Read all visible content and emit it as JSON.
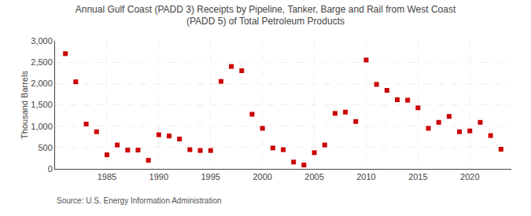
{
  "chart_data": {
    "type": "scatter",
    "title": "Annual Gulf Coast (PADD 3) Receipts by Pipeline, Tanker, Barge and Rail from West Coast\n(PADD 5) of Total Petroleum Products",
    "ylabel": "Thousand Barrels",
    "annotations": [
      "Source: U.S. Energy Information Administration"
    ],
    "x": [
      1981,
      1982,
      1983,
      1984,
      1985,
      1986,
      1987,
      1988,
      1989,
      1990,
      1991,
      1992,
      1993,
      1994,
      1995,
      1996,
      1997,
      1998,
      1999,
      2000,
      2001,
      2002,
      2003,
      2004,
      2005,
      2006,
      2007,
      2008,
      2009,
      2010,
      2011,
      2012,
      2013,
      2014,
      2015,
      2016,
      2017,
      2018,
      2019,
      2020,
      2021,
      2022,
      2023
    ],
    "values": [
      2700,
      2040,
      1050,
      870,
      330,
      560,
      440,
      440,
      200,
      800,
      770,
      700,
      450,
      430,
      430,
      2050,
      2400,
      2300,
      1280,
      950,
      490,
      450,
      160,
      90,
      380,
      560,
      1300,
      1330,
      1110,
      2550,
      1980,
      1840,
      1620,
      1610,
      1430,
      950,
      1090,
      1230,
      870,
      890,
      1090,
      780,
      460
    ],
    "color": "#cc0000",
    "marker": "square",
    "xlim": [
      1980,
      2024
    ],
    "xticks": [
      1985,
      1990,
      1995,
      2000,
      2005,
      2010,
      2015,
      2020
    ],
    "ylim": [
      0,
      3000
    ],
    "yticks": [
      0,
      500,
      {
        "value": 1000,
        "label": "1,000"
      },
      {
        "value": 1500,
        "label": "1,500"
      },
      {
        "value": 2000,
        "label": "2,000"
      },
      {
        "value": 2500,
        "label": "2,500"
      },
      {
        "value": 3000,
        "label": "3,000"
      }
    ],
    "grid": true
  }
}
